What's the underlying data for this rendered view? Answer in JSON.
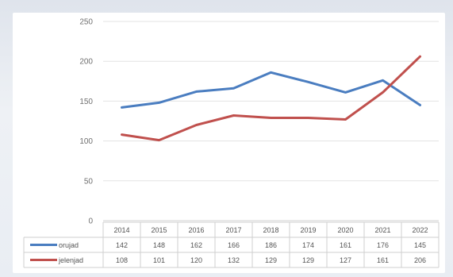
{
  "chart_data": {
    "type": "line",
    "categories": [
      "2014",
      "2015",
      "2016",
      "2017",
      "2018",
      "2019",
      "2020",
      "2021",
      "2022"
    ],
    "series": [
      {
        "name": "orujad",
        "color": "#4a7dc0",
        "values": [
          142,
          148,
          162,
          166,
          186,
          174,
          161,
          176,
          145
        ]
      },
      {
        "name": "jelenjad",
        "color": "#c0504d",
        "values": [
          108,
          101,
          120,
          132,
          129,
          129,
          127,
          161,
          206
        ]
      }
    ],
    "y_ticks": [
      "0",
      "50",
      "100",
      "150",
      "200",
      "250"
    ],
    "ylim": [
      0,
      250
    ],
    "grid": true,
    "data_table": true,
    "title": "",
    "xlabel": "",
    "ylabel": ""
  }
}
